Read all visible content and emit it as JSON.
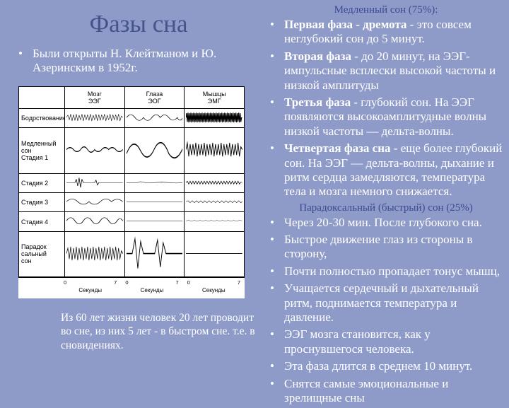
{
  "title": "Фазы сна",
  "left_bullet": "Были открыты Н. Клейтманом и Ю. Азеринским в 1952г.",
  "fact": "Из 60 лет жизни человек 20 лет проводит во сне, из них 5 лет - в быстром сне. т.е. в сновидениях.",
  "slow_header": "Медленный сон (75%):",
  "fast_header": "Парадоксальный (быстрый) сон (25%)",
  "slow": [
    {
      "b": "Первая фаза - дремота",
      "t": " - это совсем неглубокий сон до 5 минут."
    },
    {
      "b": "Вторая фаза",
      "t": " - до 20 минут, на ЭЭГ- импульсные всплески высокой частоты и низкой амплитуды"
    },
    {
      "b": "Третья фаза",
      "t": " - глубокий сон. На ЭЭГ появляются высокоамплитудные волны низкой частоты — дельта-волны."
    },
    {
      "b": "Четвертая фаза сна",
      "t": " - еще более глубокий сон. На ЭЭГ — дельта-волны, дыхание и ритм сердца замедляются, температура тела и мозга немного снижается."
    }
  ],
  "fast": [
    "Через 20-30 мин. После глубокого сна.",
    "Быстрое движение глаз из стороны в сторону,",
    "Почти полностью пропадает тонус мышц,",
    "Учащается сердечный и дыхательный ритм, поднимается температура и давление.",
    "ЭЭГ мозга становится, как у проснувшегося человека.",
    "Эта фаза длится в среднем 10 минут.",
    "Снятся самые эмоциональные и зрелищные сны"
  ],
  "fig": {
    "columns": [
      "",
      "Мозг\nЭЭГ",
      "Глаза\nЭОГ",
      "Мышцы\nЭМГ"
    ],
    "rows": [
      "Бодрствование",
      "Медленный сон\nСтадия 1",
      "Стадия 2",
      "Стадия 3",
      "Стадия 4",
      "Парадок\nсальный\nсон"
    ],
    "x_ticks": [
      "0",
      "7",
      "0",
      "7",
      "0",
      "7"
    ],
    "x_label": "Секунды",
    "waves": {
      "stroke": "#000000",
      "stroke_w_thin": 0.6,
      "stroke_w_med": 0.9,
      "stroke_w_thick": 1.2
    }
  },
  "colors": {
    "background": "#8e9bc9",
    "title": "#44538c",
    "headers": "#3a4b92",
    "text": "#ffffff",
    "fig_bg": "#ffffff",
    "fig_ink": "#000000"
  }
}
